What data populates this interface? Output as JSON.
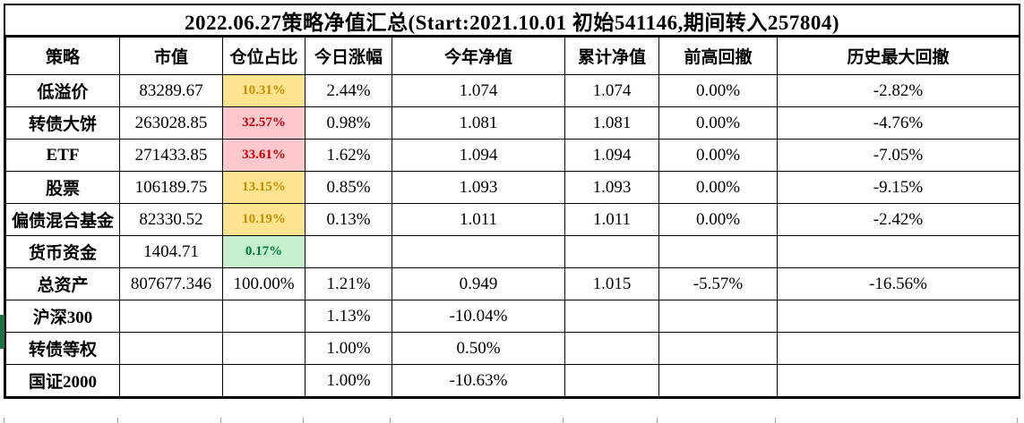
{
  "title": "2022.06.27策略净值汇总(Start:2021.10.01 初始541146,期间转入257804)",
  "columns": [
    "策略",
    "市值",
    "仓位占比",
    "今日涨幅",
    "今年净值",
    "累计净值",
    "前高回撤",
    "历史最大回撤"
  ],
  "rows": [
    {
      "cells": [
        {
          "text": "低溢价"
        },
        {
          "text": "83289.67"
        },
        {
          "text": "10.31%",
          "fill": "yellow"
        },
        {
          "text": "2.44%"
        },
        {
          "text": "1.074"
        },
        {
          "text": "1.074"
        },
        {
          "text": "0.00%"
        },
        {
          "text": "-2.82%"
        }
      ]
    },
    {
      "cells": [
        {
          "text": "转债大饼"
        },
        {
          "text": "263028.85"
        },
        {
          "text": "32.57%",
          "fill": "pink"
        },
        {
          "text": "0.98%"
        },
        {
          "text": "1.081"
        },
        {
          "text": "1.081"
        },
        {
          "text": "0.00%"
        },
        {
          "text": "-4.76%"
        }
      ]
    },
    {
      "cells": [
        {
          "text": "ETF"
        },
        {
          "text": "271433.85"
        },
        {
          "text": "33.61%",
          "fill": "pink"
        },
        {
          "text": "1.62%"
        },
        {
          "text": "1.094"
        },
        {
          "text": "1.094"
        },
        {
          "text": "0.00%"
        },
        {
          "text": "-7.05%"
        }
      ]
    },
    {
      "cells": [
        {
          "text": "股票"
        },
        {
          "text": "106189.75"
        },
        {
          "text": "13.15%",
          "fill": "yellow"
        },
        {
          "text": "0.85%"
        },
        {
          "text": "1.093"
        },
        {
          "text": "1.093"
        },
        {
          "text": "0.00%"
        },
        {
          "text": "-9.15%"
        }
      ]
    },
    {
      "cells": [
        {
          "text": "偏债混合基金"
        },
        {
          "text": "82330.52"
        },
        {
          "text": "10.19%",
          "fill": "yellow"
        },
        {
          "text": "0.13%"
        },
        {
          "text": "1.011"
        },
        {
          "text": "1.011"
        },
        {
          "text": "0.00%"
        },
        {
          "text": "-2.42%"
        }
      ]
    },
    {
      "cells": [
        {
          "text": "货币资金"
        },
        {
          "text": "1404.71"
        },
        {
          "text": "0.17%",
          "fill": "green"
        },
        {
          "text": ""
        },
        {
          "text": ""
        },
        {
          "text": ""
        },
        {
          "text": ""
        },
        {
          "text": ""
        }
      ]
    },
    {
      "cells": [
        {
          "text": "总资产"
        },
        {
          "text": "807677.346"
        },
        {
          "text": "100.00%"
        },
        {
          "text": "1.21%"
        },
        {
          "text": "0.949"
        },
        {
          "text": "1.015"
        },
        {
          "text": "-5.57%"
        },
        {
          "text": "-16.56%"
        }
      ],
      "marker": true
    },
    {
      "cells": [
        {
          "text": "沪深300"
        },
        {
          "text": ""
        },
        {
          "text": ""
        },
        {
          "text": "1.13%"
        },
        {
          "text": "-10.04%"
        },
        {
          "text": ""
        },
        {
          "text": ""
        },
        {
          "text": ""
        }
      ],
      "marker_row": true
    },
    {
      "cells": [
        {
          "text": "转债等权"
        },
        {
          "text": ""
        },
        {
          "text": ""
        },
        {
          "text": "1.00%"
        },
        {
          "text": "0.50%"
        },
        {
          "text": ""
        },
        {
          "text": ""
        },
        {
          "text": ""
        }
      ]
    },
    {
      "cells": [
        {
          "text": "国证2000"
        },
        {
          "text": ""
        },
        {
          "text": ""
        },
        {
          "text": "1.00%"
        },
        {
          "text": "-10.63%"
        },
        {
          "text": ""
        },
        {
          "text": ""
        },
        {
          "text": ""
        }
      ]
    }
  ],
  "fill_styles": {
    "yellow": {
      "bg": "#FFE38F",
      "text": "#BF8F00"
    },
    "pink": {
      "bg": "#FFC7CE",
      "text": "#C00000"
    },
    "green": {
      "bg": "#C6EFCE",
      "text": "#007A33"
    }
  },
  "marker_color": "#1E7145",
  "border_color": "#000000",
  "gridline_color": "#9E9E9E"
}
